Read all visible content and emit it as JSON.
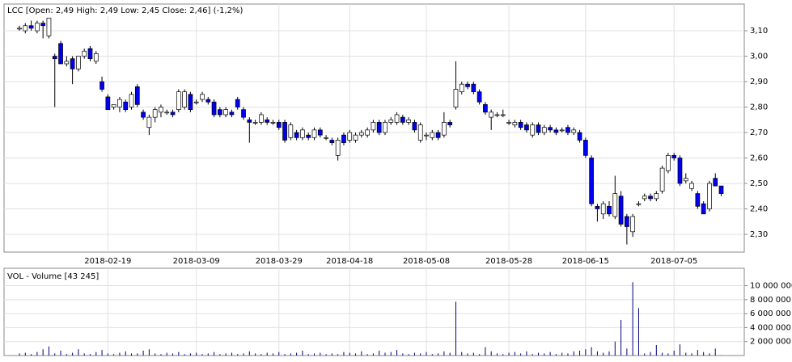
{
  "chart_data": [
    {
      "type": "candlestick",
      "title": "LCC [Open: 2,49  High: 2,49  Low: 2,45  Close: 2,46] (-1,2%)",
      "up_color": "#ffffff",
      "down_color": "#0000ee",
      "grid": true,
      "categories": [
        null,
        null,
        null,
        null,
        null,
        null,
        null,
        null,
        null,
        null,
        null,
        null,
        null,
        null,
        null,
        "2018-02-19",
        null,
        null,
        null,
        null,
        null,
        null,
        null,
        null,
        null,
        null,
        null,
        null,
        null,
        null,
        "2018-03-09",
        null,
        null,
        null,
        null,
        null,
        null,
        null,
        null,
        null,
        null,
        null,
        null,
        null,
        "2018-03-29",
        null,
        null,
        null,
        null,
        null,
        null,
        null,
        null,
        null,
        null,
        null,
        "2018-04-18",
        null,
        null,
        null,
        null,
        null,
        null,
        null,
        null,
        null,
        null,
        null,
        null,
        "2018-05-08",
        null,
        null,
        null,
        null,
        null,
        null,
        null,
        null,
        null,
        null,
        null,
        null,
        null,
        "2018-05-28",
        null,
        null,
        null,
        null,
        null,
        null,
        null,
        null,
        null,
        null,
        null,
        null,
        "2018-06-15",
        null,
        null,
        null,
        null,
        null,
        null,
        null,
        null,
        null,
        null,
        null,
        null,
        null,
        null,
        "2018-07-05",
        null,
        null,
        null,
        null,
        null,
        null,
        null,
        null
      ],
      "open": [
        3.11,
        3.1,
        3.12,
        3.1,
        3.13,
        3.08,
        3.0,
        3.05,
        2.97,
        2.99,
        2.95,
        3.0,
        3.03,
        2.98,
        2.9,
        2.84,
        2.8,
        2.8,
        2.82,
        2.8,
        2.88,
        2.78,
        2.72,
        2.76,
        2.78,
        2.78,
        2.78,
        2.79,
        2.8,
        2.85,
        2.82,
        2.83,
        2.83,
        2.82,
        2.79,
        2.77,
        2.78,
        2.83,
        2.79,
        2.75,
        2.74,
        2.74,
        2.75,
        2.74,
        2.74,
        2.74,
        2.68,
        2.7,
        2.68,
        2.69,
        2.68,
        2.71,
        2.68,
        2.67,
        2.61,
        2.69,
        2.67,
        2.67,
        2.69,
        2.69,
        2.71,
        2.74,
        2.7,
        2.74,
        2.74,
        2.76,
        2.74,
        2.74,
        2.67,
        2.69,
        2.68,
        2.7,
        2.69,
        2.74,
        2.8,
        2.86,
        2.89,
        2.89,
        2.86,
        2.81,
        2.76,
        2.77,
        2.77,
        2.74,
        2.73,
        2.74,
        2.73,
        2.69,
        2.73,
        2.7,
        2.72,
        2.71,
        2.71,
        2.72,
        2.7,
        2.7,
        2.67,
        2.6,
        2.41,
        2.38,
        2.41,
        2.37,
        2.45,
        2.37,
        2.31,
        2.42,
        2.44,
        2.45,
        2.44,
        2.47,
        2.55,
        2.61,
        2.6,
        2.51,
        2.48,
        2.46,
        2.42,
        2.4,
        2.52,
        2.49
      ],
      "high": [
        3.12,
        3.13,
        3.14,
        3.14,
        3.14,
        3.15,
        3.01,
        3.06,
        3.0,
        3.0,
        3.0,
        3.03,
        3.04,
        3.02,
        2.92,
        2.85,
        2.81,
        2.84,
        2.83,
        2.86,
        2.89,
        2.79,
        2.77,
        2.8,
        2.81,
        2.79,
        2.79,
        2.87,
        2.87,
        2.86,
        2.83,
        2.86,
        2.84,
        2.83,
        2.8,
        2.8,
        2.79,
        2.84,
        2.8,
        2.76,
        2.75,
        2.78,
        2.76,
        2.75,
        2.75,
        2.75,
        2.74,
        2.71,
        2.72,
        2.7,
        2.72,
        2.72,
        2.69,
        2.68,
        2.68,
        2.7,
        2.71,
        2.7,
        2.71,
        2.72,
        2.75,
        2.75,
        2.75,
        2.76,
        2.78,
        2.77,
        2.76,
        2.75,
        2.74,
        2.7,
        2.71,
        2.71,
        2.78,
        2.75,
        2.98,
        2.9,
        2.9,
        2.9,
        2.87,
        2.82,
        2.79,
        2.78,
        2.79,
        2.75,
        2.75,
        2.75,
        2.74,
        2.74,
        2.74,
        2.73,
        2.73,
        2.72,
        2.72,
        2.73,
        2.72,
        2.71,
        2.68,
        2.61,
        2.42,
        2.43,
        2.43,
        2.53,
        2.47,
        2.38,
        2.38,
        2.43,
        2.46,
        2.46,
        2.47,
        2.57,
        2.62,
        2.62,
        2.61,
        2.54,
        2.51,
        2.47,
        2.43,
        2.51,
        2.54,
        2.49
      ],
      "low": [
        3.1,
        3.09,
        3.1,
        3.09,
        3.07,
        3.07,
        2.8,
        2.97,
        2.96,
        2.89,
        2.94,
        2.99,
        2.98,
        2.97,
        2.86,
        2.79,
        2.79,
        2.78,
        2.78,
        2.79,
        2.8,
        2.75,
        2.69,
        2.74,
        2.76,
        2.77,
        2.76,
        2.78,
        2.79,
        2.78,
        2.81,
        2.82,
        2.81,
        2.76,
        2.76,
        2.76,
        2.76,
        2.79,
        2.75,
        2.66,
        2.73,
        2.73,
        2.73,
        2.73,
        2.71,
        2.66,
        2.67,
        2.67,
        2.67,
        2.67,
        2.67,
        2.68,
        2.67,
        2.65,
        2.59,
        2.65,
        2.66,
        2.66,
        2.68,
        2.68,
        2.7,
        2.69,
        2.69,
        2.73,
        2.73,
        2.73,
        2.73,
        2.7,
        2.66,
        2.67,
        2.67,
        2.67,
        2.68,
        2.72,
        2.79,
        2.85,
        2.87,
        2.85,
        2.81,
        2.77,
        2.71,
        2.76,
        2.76,
        2.73,
        2.72,
        2.71,
        2.7,
        2.68,
        2.69,
        2.69,
        2.7,
        2.69,
        2.7,
        2.69,
        2.69,
        2.66,
        2.6,
        2.41,
        2.35,
        2.36,
        2.37,
        2.36,
        2.33,
        2.26,
        2.29,
        2.41,
        2.43,
        2.43,
        2.43,
        2.46,
        2.54,
        2.59,
        2.49,
        2.5,
        2.47,
        2.4,
        2.38,
        2.39,
        2.49,
        2.45
      ],
      "close": [
        3.11,
        3.12,
        3.11,
        3.13,
        3.12,
        3.15,
        2.99,
        2.97,
        2.98,
        2.95,
        3.0,
        3.02,
        2.99,
        3.01,
        2.87,
        2.79,
        2.81,
        2.83,
        2.79,
        2.85,
        2.81,
        2.76,
        2.76,
        2.79,
        2.8,
        2.78,
        2.77,
        2.86,
        2.86,
        2.79,
        2.82,
        2.85,
        2.82,
        2.77,
        2.77,
        2.79,
        2.77,
        2.8,
        2.76,
        2.74,
        2.74,
        2.77,
        2.74,
        2.74,
        2.72,
        2.67,
        2.73,
        2.68,
        2.71,
        2.68,
        2.71,
        2.69,
        2.68,
        2.66,
        2.67,
        2.66,
        2.7,
        2.69,
        2.7,
        2.71,
        2.74,
        2.7,
        2.74,
        2.75,
        2.77,
        2.74,
        2.75,
        2.71,
        2.73,
        2.69,
        2.7,
        2.68,
        2.74,
        2.73,
        2.87,
        2.89,
        2.88,
        2.86,
        2.82,
        2.78,
        2.78,
        2.77,
        2.77,
        2.74,
        2.74,
        2.72,
        2.71,
        2.73,
        2.7,
        2.72,
        2.71,
        2.7,
        2.71,
        2.7,
        2.71,
        2.67,
        2.61,
        2.42,
        2.4,
        2.42,
        2.38,
        2.46,
        2.34,
        2.33,
        2.37,
        2.42,
        2.45,
        2.44,
        2.46,
        2.56,
        2.61,
        2.6,
        2.5,
        2.52,
        2.5,
        2.41,
        2.38,
        2.5,
        2.49,
        2.46
      ],
      "ylim": [
        2.23,
        3.205
      ],
      "yticks": [
        {
          "value": 2.3,
          "label": "2,30"
        },
        {
          "value": 2.4,
          "label": "2,40"
        },
        {
          "value": 2.5,
          "label": "2,50"
        },
        {
          "value": 2.6,
          "label": "2,60"
        },
        {
          "value": 2.7,
          "label": "2,70"
        },
        {
          "value": 2.8,
          "label": "2,80"
        },
        {
          "value": 2.9,
          "label": "2,90"
        },
        {
          "value": 3.0,
          "label": "3,00"
        },
        {
          "value": 3.1,
          "label": "3,10"
        }
      ]
    },
    {
      "type": "bar",
      "title": "VOL - Volume [43 245]",
      "color": "#000080",
      "grid": true,
      "values": [
        300000,
        400000,
        200000,
        500000,
        900000,
        1300000,
        300000,
        700000,
        200000,
        400000,
        900000,
        300000,
        200000,
        500000,
        800000,
        300000,
        200000,
        400000,
        600000,
        300000,
        300000,
        700000,
        900000,
        300000,
        200000,
        400000,
        300000,
        500000,
        200000,
        300000,
        400000,
        200000,
        300000,
        500000,
        200000,
        300000,
        400000,
        200000,
        300000,
        600000,
        300000,
        200000,
        400000,
        300000,
        500000,
        200000,
        300000,
        400000,
        700000,
        200000,
        300000,
        400000,
        200000,
        300000,
        200000,
        500000,
        400000,
        300000,
        600000,
        200000,
        300000,
        700000,
        400000,
        500000,
        800000,
        300000,
        200000,
        400000,
        300000,
        500000,
        200000,
        300000,
        600000,
        400000,
        7700000,
        500000,
        300000,
        400000,
        200000,
        1200000,
        600000,
        300000,
        200000,
        400000,
        500000,
        300000,
        600000,
        200000,
        400000,
        300000,
        500000,
        200000,
        400000,
        300000,
        600000,
        700000,
        900000,
        1200000,
        600000,
        400000,
        600000,
        2000000,
        5100000,
        1000000,
        10500000,
        6800000,
        300000,
        500000,
        1500000,
        400000,
        300000,
        700000,
        1600000,
        400000,
        300000,
        800000,
        500000,
        300000,
        1000000,
        43245
      ],
      "ylim": [
        0,
        11800000
      ],
      "yticks": [
        {
          "value": 2000000,
          "label": "2 000 000"
        },
        {
          "value": 4000000,
          "label": "4 000 000"
        },
        {
          "value": 6000000,
          "label": "6 000 000"
        },
        {
          "value": 8000000,
          "label": "8 000 000"
        },
        {
          "value": 10000000,
          "label": "10 000 000"
        }
      ]
    }
  ]
}
